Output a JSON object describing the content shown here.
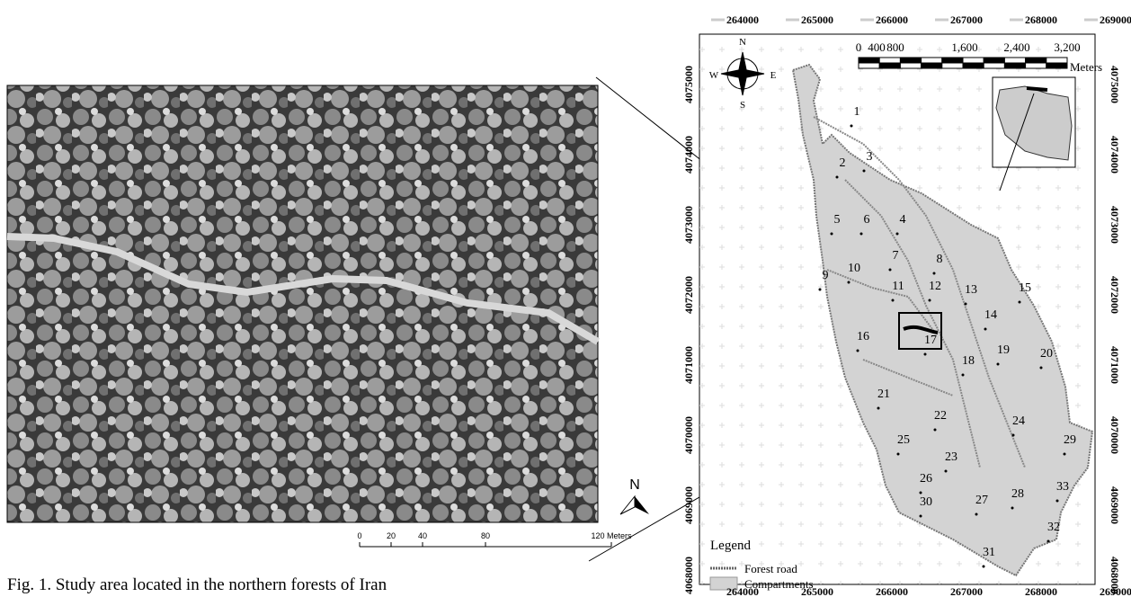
{
  "caption": "Fig. 1. Study area located in the northern forests of Iran",
  "aerial": {
    "north": "N",
    "scale_labels": [
      "0",
      "20",
      "40",
      "80",
      "120 Meters"
    ]
  },
  "map": {
    "x_ticks": [
      "264000",
      "265000",
      "266000",
      "267000",
      "268000",
      "269000"
    ],
    "y_ticks": [
      "4068000",
      "4069000",
      "4070000",
      "4071000",
      "4072000",
      "4073000",
      "4074000",
      "4075000"
    ],
    "compass": [
      "N",
      "E",
      "S",
      "W"
    ],
    "scale_labels": [
      "0",
      "400",
      "800",
      "1,600",
      "2,400",
      "3,200"
    ],
    "scale_unit": "Meters",
    "compartments": [
      "1",
      "2",
      "3",
      "4",
      "5",
      "6",
      "7",
      "8",
      "9",
      "10",
      "11",
      "12",
      "13",
      "14",
      "15",
      "16",
      "17",
      "18",
      "19",
      "20",
      "21",
      "22",
      "23",
      "24",
      "25",
      "26",
      "27",
      "28",
      "29",
      "30",
      "31",
      "32",
      "33"
    ],
    "legend": {
      "title": "Legend",
      "items": [
        "Forest road",
        "Compartments"
      ]
    }
  }
}
